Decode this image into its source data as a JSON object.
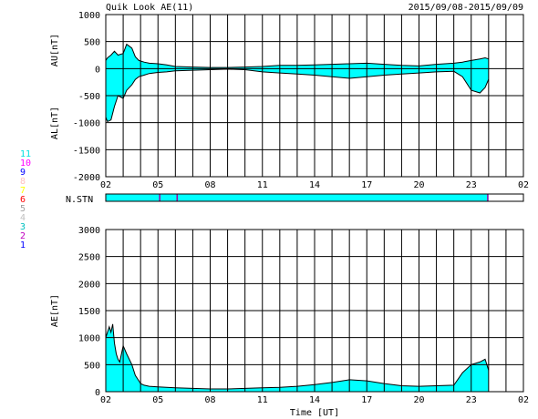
{
  "header": {
    "title": "Quik Look AE(11)",
    "date_range": "2015/09/08-2015/09/09"
  },
  "colors": {
    "fill": "#00ffff",
    "line": "#000000",
    "grid": "#000000"
  },
  "station_legend": [
    {
      "label": "11",
      "color": "#00e0e0"
    },
    {
      "label": "10",
      "color": "#ff00ff"
    },
    {
      "label": "9",
      "color": "#0000ff"
    },
    {
      "label": "8",
      "color": "#ffc0c0"
    },
    {
      "label": "7",
      "color": "#ffff00"
    },
    {
      "label": "6",
      "color": "#ff0000"
    },
    {
      "label": "5",
      "color": "#a0a0a0"
    },
    {
      "label": "4",
      "color": "#c0c0c0"
    },
    {
      "label": "3",
      "color": "#00c0c0"
    },
    {
      "label": "2",
      "color": "#c000c0"
    },
    {
      "label": "1",
      "color": "#0000ff"
    }
  ],
  "chart_data": [
    {
      "type": "area",
      "ylabel_top": "AU[nT]",
      "ylabel_bottom": "AL[nT]",
      "ylim": [
        -2000,
        1000
      ],
      "yticks": [
        1000,
        500,
        0,
        -500,
        -1000,
        -1500,
        -2000
      ],
      "xlim": [
        0,
        24
      ],
      "xtick_labels": [
        "02",
        "05",
        "08",
        "11",
        "14",
        "17",
        "20",
        "23",
        "02"
      ],
      "xtick_positions": [
        0,
        3,
        6,
        9,
        12,
        15,
        18,
        21,
        24
      ],
      "grid": true,
      "series": [
        {
          "x": [
            0,
            0.1,
            0.3,
            0.5,
            0.7,
            1.0,
            1.2,
            1.5,
            1.7,
            1.9,
            2.2,
            2.5,
            3,
            3.5,
            4,
            5,
            6,
            7,
            8,
            9,
            10,
            11,
            12,
            13,
            14,
            15,
            16,
            17,
            18,
            19,
            20,
            20.5,
            21,
            21.5,
            21.8,
            22
          ],
          "values": [
            150,
            200,
            250,
            320,
            250,
            280,
            450,
            380,
            220,
            150,
            120,
            100,
            90,
            70,
            40,
            30,
            20,
            20,
            30,
            40,
            60,
            60,
            70,
            80,
            90,
            100,
            80,
            60,
            50,
            80,
            100,
            120,
            150,
            180,
            200,
            180
          ]
        },
        {
          "x": [
            0,
            0.1,
            0.3,
            0.5,
            0.7,
            1.0,
            1.2,
            1.5,
            1.7,
            1.9,
            2.2,
            2.5,
            3,
            3.5,
            4,
            5,
            6,
            7,
            8,
            9,
            10,
            11,
            12,
            13,
            14,
            15,
            16,
            17,
            18,
            19,
            20,
            20.5,
            21,
            21.5,
            21.8,
            22
          ],
          "values": [
            -900,
            -980,
            -950,
            -700,
            -500,
            -550,
            -400,
            -300,
            -200,
            -150,
            -120,
            -90,
            -70,
            -60,
            -40,
            -30,
            -20,
            -10,
            -20,
            -60,
            -80,
            -100,
            -120,
            -150,
            -180,
            -150,
            -120,
            -100,
            -80,
            -60,
            -50,
            -150,
            -400,
            -450,
            -350,
            -200
          ]
        }
      ]
    },
    {
      "type": "bar",
      "label": "N.STN",
      "xlim": [
        0,
        24
      ],
      "segments": [
        {
          "start": 0,
          "end": 22,
          "color": "#00ffff"
        }
      ],
      "markers": [
        {
          "x": 3.1,
          "color": "#a000a0"
        },
        {
          "x": 4.1,
          "color": "#a000a0"
        },
        {
          "x": 21.95,
          "color": "#a000a0"
        }
      ]
    },
    {
      "type": "area",
      "ylabel": "AE[nT]",
      "ylim": [
        0,
        3000
      ],
      "yticks": [
        3000,
        2500,
        2000,
        1500,
        1000,
        500,
        0
      ],
      "xlim": [
        0,
        24
      ],
      "xtick_labels": [
        "02",
        "05",
        "08",
        "11",
        "14",
        "17",
        "20",
        "23",
        "02"
      ],
      "xtick_positions": [
        0,
        3,
        6,
        9,
        12,
        15,
        18,
        21,
        24
      ],
      "xlabel": "Time [UT]",
      "grid": true,
      "series": [
        {
          "x": [
            0,
            0.1,
            0.2,
            0.3,
            0.4,
            0.5,
            0.6,
            0.7,
            0.8,
            0.9,
            1.0,
            1.2,
            1.5,
            1.7,
            1.9,
            2.0,
            2.2,
            2.5,
            3,
            3.5,
            4,
            5,
            6,
            7,
            8,
            9,
            10,
            11,
            12,
            13,
            14,
            15,
            16,
            17,
            18,
            19,
            20,
            20.5,
            21,
            21.5,
            21.8,
            22
          ],
          "values": [
            1000,
            1100,
            1200,
            1100,
            1250,
            900,
            700,
            600,
            550,
            700,
            850,
            700,
            500,
            300,
            200,
            150,
            120,
            100,
            90,
            80,
            70,
            60,
            50,
            50,
            60,
            70,
            80,
            100,
            130,
            170,
            220,
            200,
            150,
            110,
            100,
            110,
            120,
            350,
            500,
            550,
            600,
            400
          ]
        }
      ]
    }
  ]
}
